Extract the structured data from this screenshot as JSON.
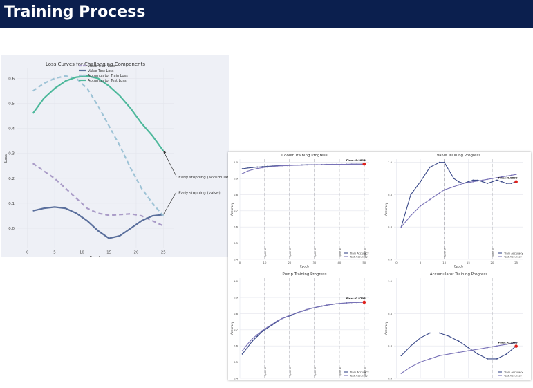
{
  "slide": {
    "title": "Training Process"
  },
  "chart_data": [
    {
      "type": "line",
      "title": "Loss Curves for Challenging Components",
      "xlabel": "Epoch",
      "ylabel": "Loss",
      "xlim": [
        -2,
        27
      ],
      "ylim": [
        -0.08,
        0.64
      ],
      "xticks": [
        0,
        5,
        10,
        15,
        20,
        25
      ],
      "yticks": [
        0.0,
        0.1,
        0.2,
        0.3,
        0.4,
        0.5,
        0.6
      ],
      "ytick_labels": [
        "0.0",
        "0.1",
        "0.2",
        "0.3",
        "0.4",
        "0.5",
        "0.6"
      ],
      "grid": true,
      "legend": "top-center",
      "x": [
        1,
        3,
        5,
        7,
        9,
        11,
        13,
        15,
        17,
        19,
        21,
        23,
        25
      ],
      "series": [
        {
          "name": "Valve Train Loss",
          "color": "#a99bc7",
          "dash": true,
          "values": [
            0.26,
            0.23,
            0.2,
            0.16,
            0.12,
            0.08,
            0.06,
            0.052,
            0.055,
            0.058,
            0.05,
            0.03,
            0.01
          ]
        },
        {
          "name": "Valve Test Loss",
          "color": "#5a6f9c",
          "dash": false,
          "values": [
            0.07,
            0.08,
            0.085,
            0.08,
            0.06,
            0.03,
            -0.01,
            -0.04,
            -0.03,
            0.0,
            0.03,
            0.05,
            0.055
          ]
        },
        {
          "name": "Accumulator Train Loss",
          "color": "#9ec3d6",
          "dash": true,
          "values": [
            0.55,
            0.58,
            0.6,
            0.61,
            0.6,
            0.56,
            0.49,
            0.41,
            0.33,
            0.24,
            0.16,
            0.1,
            0.05
          ]
        },
        {
          "name": "Accumulator Test Loss",
          "color": "#4db89b",
          "dash": false,
          "values": [
            0.46,
            0.52,
            0.56,
            0.59,
            0.605,
            0.61,
            0.6,
            0.57,
            0.53,
            0.48,
            0.42,
            0.37,
            0.31
          ]
        }
      ],
      "annotations": [
        {
          "text": "Early stopping (accumulator)",
          "x": 25,
          "y": 0.31
        },
        {
          "text": "Early stopping (valve)",
          "x": 25,
          "y": 0.055
        }
      ]
    },
    {
      "type": "line",
      "title": "Cooler Training Progress",
      "xlabel": "Epoch",
      "ylabel": "Accuracy",
      "xlim": [
        0,
        52
      ],
      "ylim": [
        0.4,
        1.02
      ],
      "xticks": [
        0,
        10,
        20,
        30,
        40,
        50
      ],
      "yticks": [
        0.4,
        0.5,
        0.6,
        0.7,
        0.8,
        0.9,
        1.0
      ],
      "ytick_labels": [
        "0.4",
        "0.5",
        "0.6",
        "0.7",
        "0.8",
        "0.9",
        "1.0"
      ],
      "vlines": [
        10,
        20,
        30,
        40,
        50
      ],
      "vline_labels": [
        "Epoch 10",
        "Epoch 20",
        "Epoch 30",
        "Epoch 40",
        "Epoch 50"
      ],
      "x": [
        1,
        3,
        5,
        7,
        9,
        11,
        13,
        15,
        17,
        19,
        21,
        23,
        25,
        27,
        29,
        31,
        33,
        35,
        37,
        39,
        41,
        43,
        45,
        47,
        49,
        50
      ],
      "series": [
        {
          "name": "Train Accuracy",
          "color": "#3b4a8a",
          "values": [
            0.96,
            0.965,
            0.968,
            0.971,
            0.973,
            0.975,
            0.977,
            0.979,
            0.98,
            0.981,
            0.982,
            0.983,
            0.984,
            0.985,
            0.985,
            0.986,
            0.986,
            0.987,
            0.987,
            0.988,
            0.988,
            0.988,
            0.989,
            0.989,
            0.989,
            0.9894
          ]
        },
        {
          "name": "Test Accuracy",
          "color": "#7a73b8",
          "values": [
            0.93,
            0.945,
            0.955,
            0.962,
            0.967,
            0.971,
            0.974,
            0.977,
            0.979,
            0.98,
            0.981,
            0.982,
            0.983,
            0.984,
            0.985,
            0.986,
            0.986,
            0.987,
            0.987,
            0.988,
            0.988,
            0.988,
            0.989,
            0.989,
            0.989,
            0.9894
          ]
        }
      ],
      "final": {
        "label": "Final: 0.9894",
        "x": 50,
        "y": 0.9894
      },
      "legend": "bottom-right"
    },
    {
      "type": "line",
      "title": "Valve Training Progress",
      "xlabel": "Epoch",
      "ylabel": "Accuracy",
      "xlim": [
        -0.5,
        26.5
      ],
      "ylim": [
        0.4,
        1.02
      ],
      "xticks": [
        0,
        5,
        10,
        15,
        20,
        25
      ],
      "yticks": [
        0.4,
        0.6,
        0.8,
        1.0
      ],
      "ytick_labels": [
        "0.4",
        "0.6",
        "0.8",
        "1.0"
      ],
      "vlines": [
        10,
        20
      ],
      "vline_labels": [
        "Epoch 10",
        "Epoch 20"
      ],
      "x": [
        1,
        3,
        5,
        7,
        9,
        10,
        11,
        12,
        13,
        14,
        15,
        16,
        17,
        18,
        19,
        20,
        21,
        22,
        23,
        24,
        25
      ],
      "series": [
        {
          "name": "Train Accuracy",
          "color": "#3b4a8a",
          "values": [
            0.6,
            0.8,
            0.88,
            0.97,
            1.0,
            1.0,
            0.95,
            0.9,
            0.88,
            0.87,
            0.88,
            0.89,
            0.89,
            0.88,
            0.87,
            0.88,
            0.89,
            0.88,
            0.87,
            0.87,
            0.88
          ]
        },
        {
          "name": "Test Accuracy",
          "color": "#7a73b8",
          "values": [
            0.6,
            0.67,
            0.73,
            0.77,
            0.81,
            0.83,
            0.84,
            0.85,
            0.86,
            0.87,
            0.875,
            0.88,
            0.885,
            0.89,
            0.895,
            0.9,
            0.905,
            0.91,
            0.915,
            0.92,
            0.925
          ]
        }
      ],
      "final": {
        "label": "Final: 0.8800",
        "x": 25,
        "y": 0.88
      },
      "legend": "bottom-right"
    },
    {
      "type": "line",
      "title": "Pump Training Progress",
      "xlabel": "Epoch",
      "ylabel": "Accuracy",
      "xlim": [
        0,
        52
      ],
      "ylim": [
        0.4,
        1.02
      ],
      "xticks": [
        0,
        10,
        20,
        30,
        40,
        50
      ],
      "yticks": [
        0.4,
        0.5,
        0.6,
        0.7,
        0.8,
        0.9,
        1.0
      ],
      "ytick_labels": [
        "0.4",
        "0.5",
        "0.6",
        "0.7",
        "0.8",
        "0.9",
        "1.0"
      ],
      "vlines": [
        10,
        20,
        30,
        40,
        50
      ],
      "vline_labels": [
        "Epoch 10",
        "Epoch 20",
        "Epoch 30",
        "Epoch 40",
        "Epoch 50"
      ],
      "x": [
        1,
        3,
        5,
        7,
        9,
        11,
        13,
        15,
        17,
        19,
        21,
        23,
        25,
        27,
        29,
        31,
        33,
        35,
        37,
        39,
        41,
        43,
        45,
        47,
        49,
        50
      ],
      "series": [
        {
          "name": "Train Accuracy",
          "color": "#3b4a8a",
          "values": [
            0.55,
            0.59,
            0.63,
            0.66,
            0.69,
            0.71,
            0.73,
            0.75,
            0.77,
            0.78,
            0.79,
            0.805,
            0.815,
            0.825,
            0.833,
            0.84,
            0.846,
            0.852,
            0.857,
            0.861,
            0.864,
            0.866,
            0.868,
            0.869,
            0.87,
            0.8705
          ]
        },
        {
          "name": "Test Accuracy",
          "color": "#7a73b8",
          "values": [
            0.57,
            0.61,
            0.645,
            0.67,
            0.695,
            0.715,
            0.735,
            0.755,
            0.77,
            0.782,
            0.794,
            0.806,
            0.816,
            0.826,
            0.834,
            0.841,
            0.847,
            0.853,
            0.857,
            0.861,
            0.864,
            0.866,
            0.868,
            0.869,
            0.87,
            0.8705
          ]
        }
      ],
      "final": {
        "label": "Final: 0.8705",
        "x": 50,
        "y": 0.8705
      },
      "legend": "bottom-right"
    },
    {
      "type": "line",
      "title": "Accumulator Training Progress",
      "xlabel": "Epoch",
      "ylabel": "Accuracy",
      "xlim": [
        -0.5,
        26.5
      ],
      "ylim": [
        0.4,
        1.02
      ],
      "xticks": [
        0,
        5,
        10,
        15,
        20,
        25
      ],
      "yticks": [
        0.4,
        0.6,
        0.8,
        1.0
      ],
      "ytick_labels": [
        "0.4",
        "0.6",
        "0.8",
        "1.0"
      ],
      "vlines": [
        20
      ],
      "vline_labels": [],
      "x": [
        1,
        3,
        5,
        7,
        9,
        11,
        13,
        15,
        17,
        19,
        21,
        23,
        25
      ],
      "series": [
        {
          "name": "Train Accuracy",
          "color": "#3b4a8a",
          "values": [
            0.54,
            0.6,
            0.65,
            0.68,
            0.68,
            0.66,
            0.63,
            0.59,
            0.55,
            0.52,
            0.52,
            0.55,
            0.6
          ]
        },
        {
          "name": "Test Accuracy",
          "color": "#7a73b8",
          "values": [
            0.43,
            0.47,
            0.5,
            0.52,
            0.54,
            0.55,
            0.56,
            0.57,
            0.58,
            0.59,
            0.6,
            0.61,
            0.62
          ]
        }
      ],
      "final": {
        "label": "Final: 0.5985",
        "x": 25,
        "y": 0.5985
      },
      "legend": "bottom-right"
    }
  ]
}
